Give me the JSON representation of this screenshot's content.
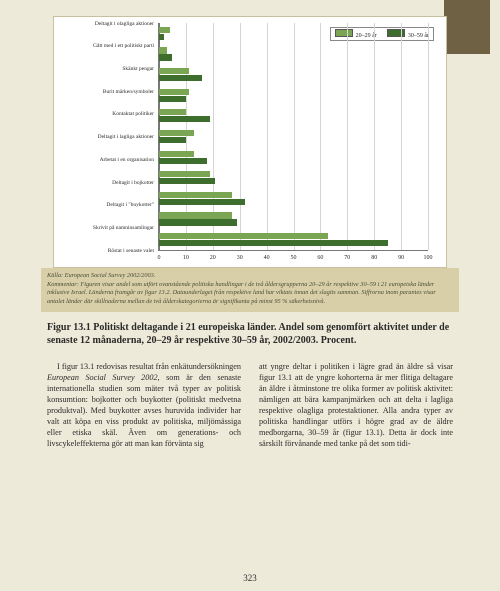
{
  "chart": {
    "type": "bar-horizontal-grouped",
    "background": "#ffffff",
    "border_color": "#c9bf9d",
    "grid_color": "#d5d5d5",
    "axis_color": "#777777",
    "xlim": [
      0,
      100
    ],
    "xtick_step": 10,
    "xticks": [
      0,
      10,
      20,
      30,
      40,
      50,
      60,
      70,
      80,
      90,
      100
    ],
    "legend": {
      "items": [
        {
          "label": "20–29 år",
          "color": "#7aa653"
        },
        {
          "label": "30–59 år",
          "color": "#3d6e2d"
        }
      ]
    },
    "series_colors": [
      "#7aa653",
      "#3d6e2d"
    ],
    "categories": [
      {
        "label": "Deltagit i olagliga aktioner",
        "v": [
          4,
          2
        ]
      },
      {
        "label": "Gått med i ett politiskt parti",
        "v": [
          3,
          5
        ]
      },
      {
        "label": "Skänkt pengar",
        "v": [
          11,
          16
        ]
      },
      {
        "label": "Burit märken/symboler",
        "v": [
          11,
          10
        ]
      },
      {
        "label": "Kontaktat politiker",
        "v": [
          10,
          19
        ]
      },
      {
        "label": "Deltagit i lagliga aktioner",
        "v": [
          13,
          10
        ]
      },
      {
        "label": "Arbetat i en organisation",
        "v": [
          13,
          18
        ]
      },
      {
        "label": "Deltagit i bojkotter",
        "v": [
          19,
          21
        ]
      },
      {
        "label": "Deltagit i \"buykotter\"",
        "v": [
          27,
          32
        ]
      },
      {
        "label": "Skrivit på namninsamlingar",
        "v": [
          27,
          29
        ]
      },
      {
        "label": "Röstat i senaste valet",
        "v": [
          63,
          85
        ]
      }
    ],
    "label_fontsize": 5.5,
    "tick_fontsize": 6
  },
  "caption": {
    "lines": [
      "Källa: European Social Survey 2002/2003.",
      "Kommentar: Figuren visar andel som utfört ovanstående politiska handlingar i de två åldersgrupperna 20–29 år respektive 30–59 i 21 europeiska länder inklusive Israel. Länderna framgår av figur 13.2. Dataunderlaget från respektive land har viktats innan det slagits samman. Siffrorna inom parantes visar antalet länder där skillnaderna mellan de två ålderskategorierna är signifikanta på minst 95 % säkerhetsnivå."
    ]
  },
  "figure_title": "Figur 13.1 Politiskt deltagande i 21 europeiska länder. Andel som genomfört aktivitet under de senaste 12 månaderna, 20–29 år respektive 30–59 år, 2002/2003. Procent.",
  "body": {
    "p1_lead": "I figur 13.1 redovisas resultat från enkätundersökningen ",
    "p1_em": "European Social Survey 2002",
    "p1_rest": ", som är den senaste internationella studien som mäter två typer av politisk konsumtion: bojkotter och buykotter (politiskt medvetna produktval). Med buykotter avses huruvida individer har valt att köpa en viss produkt av politiska, miljömässiga eller etiska skäl. Även om generations- och livscykeleffekterna gör att man kan förvänta sig",
    "p2": "att yngre deltar i politiken i lägre grad än äldre så visar figur 13.1 att de yngre kohorterna är mer flitiga deltagare än äldre i åtminstone tre olika former av politisk aktivitet: nämligen att bära kampanjmärken och att delta i lagliga respektive olagliga protestaktioner. Alla andra typer av politiska handlingar utförs i högre grad av de äldre medborgarna, 30–59 år (figur 13.1). Detta är dock inte särskilt förvånande med tanke på det som tidi-"
  },
  "page_number": "323"
}
